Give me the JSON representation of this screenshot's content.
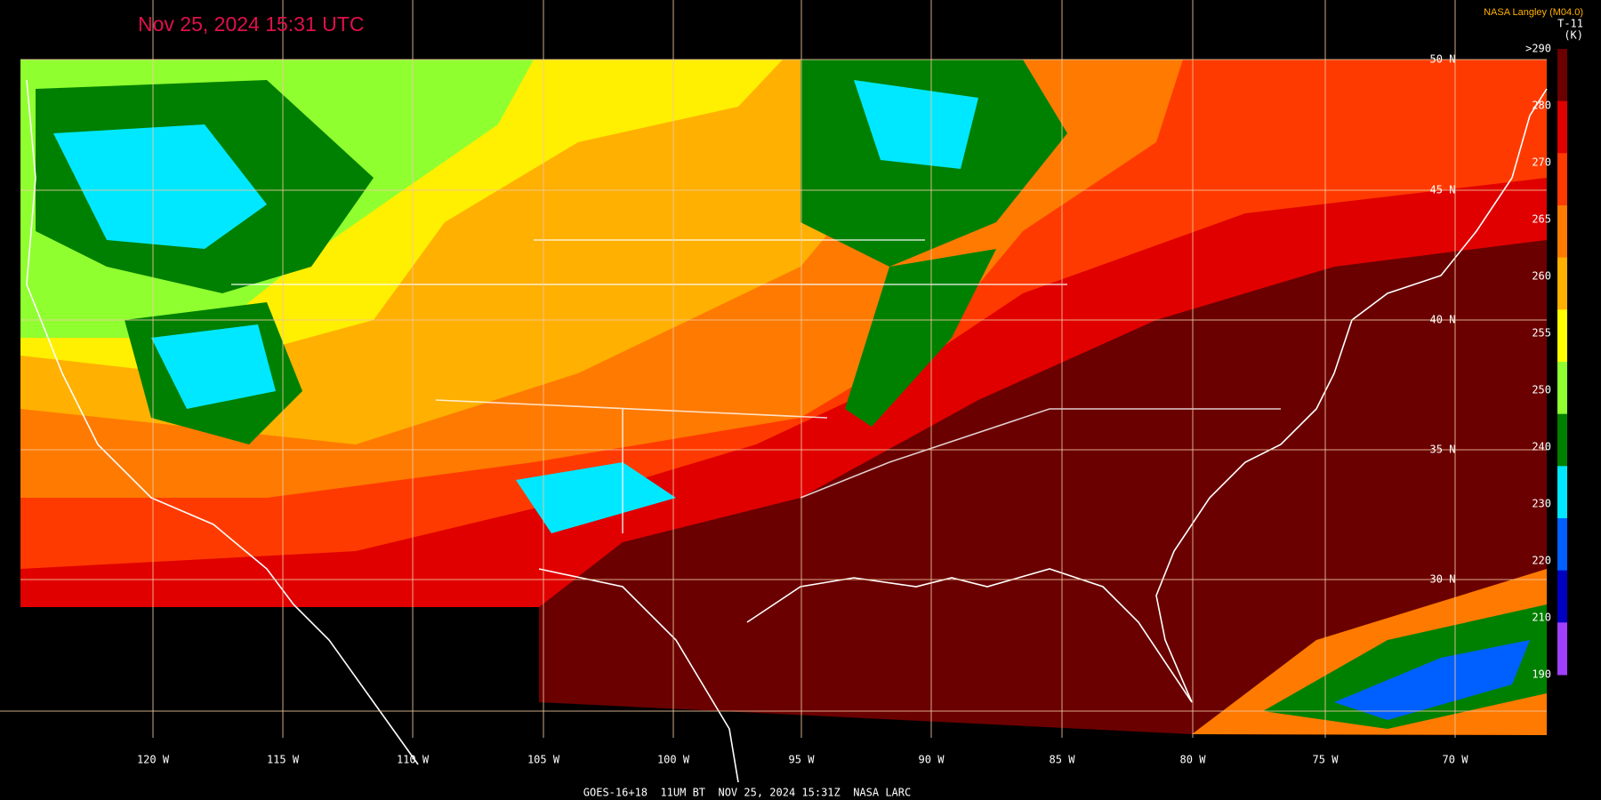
{
  "header": {
    "title": "Nov 25, 2024 15:31 UTC",
    "credit": "NASA Langley (M04.0)"
  },
  "legend": {
    "title": "T-11",
    "unit": "(K)",
    "labels": [
      ">290",
      "280",
      "270",
      "265",
      "260",
      "255",
      "250",
      "240",
      "230",
      "220",
      "210",
      "190"
    ],
    "colors": [
      "#6a0000",
      "#e00000",
      "#ff3a00",
      "#ff7a00",
      "#ffb000",
      "#ffff00",
      "#90ff30",
      "#008000",
      "#00e8ff",
      "#0060ff",
      "#0000c0",
      "#a040ff"
    ]
  },
  "lat_labels": [
    "50 N",
    "45 N",
    "40 N",
    "35 N",
    "30 N"
  ],
  "lon_labels": [
    "120 W",
    "115 W",
    "110 W",
    "105 W",
    "100 W",
    "95 W",
    "90 W",
    "85 W",
    "80 W",
    "75 W",
    "70 W"
  ],
  "footer": "GOES-16+18  11UM BT  NOV 25, 2024 15:31Z  NASA LARC"
}
